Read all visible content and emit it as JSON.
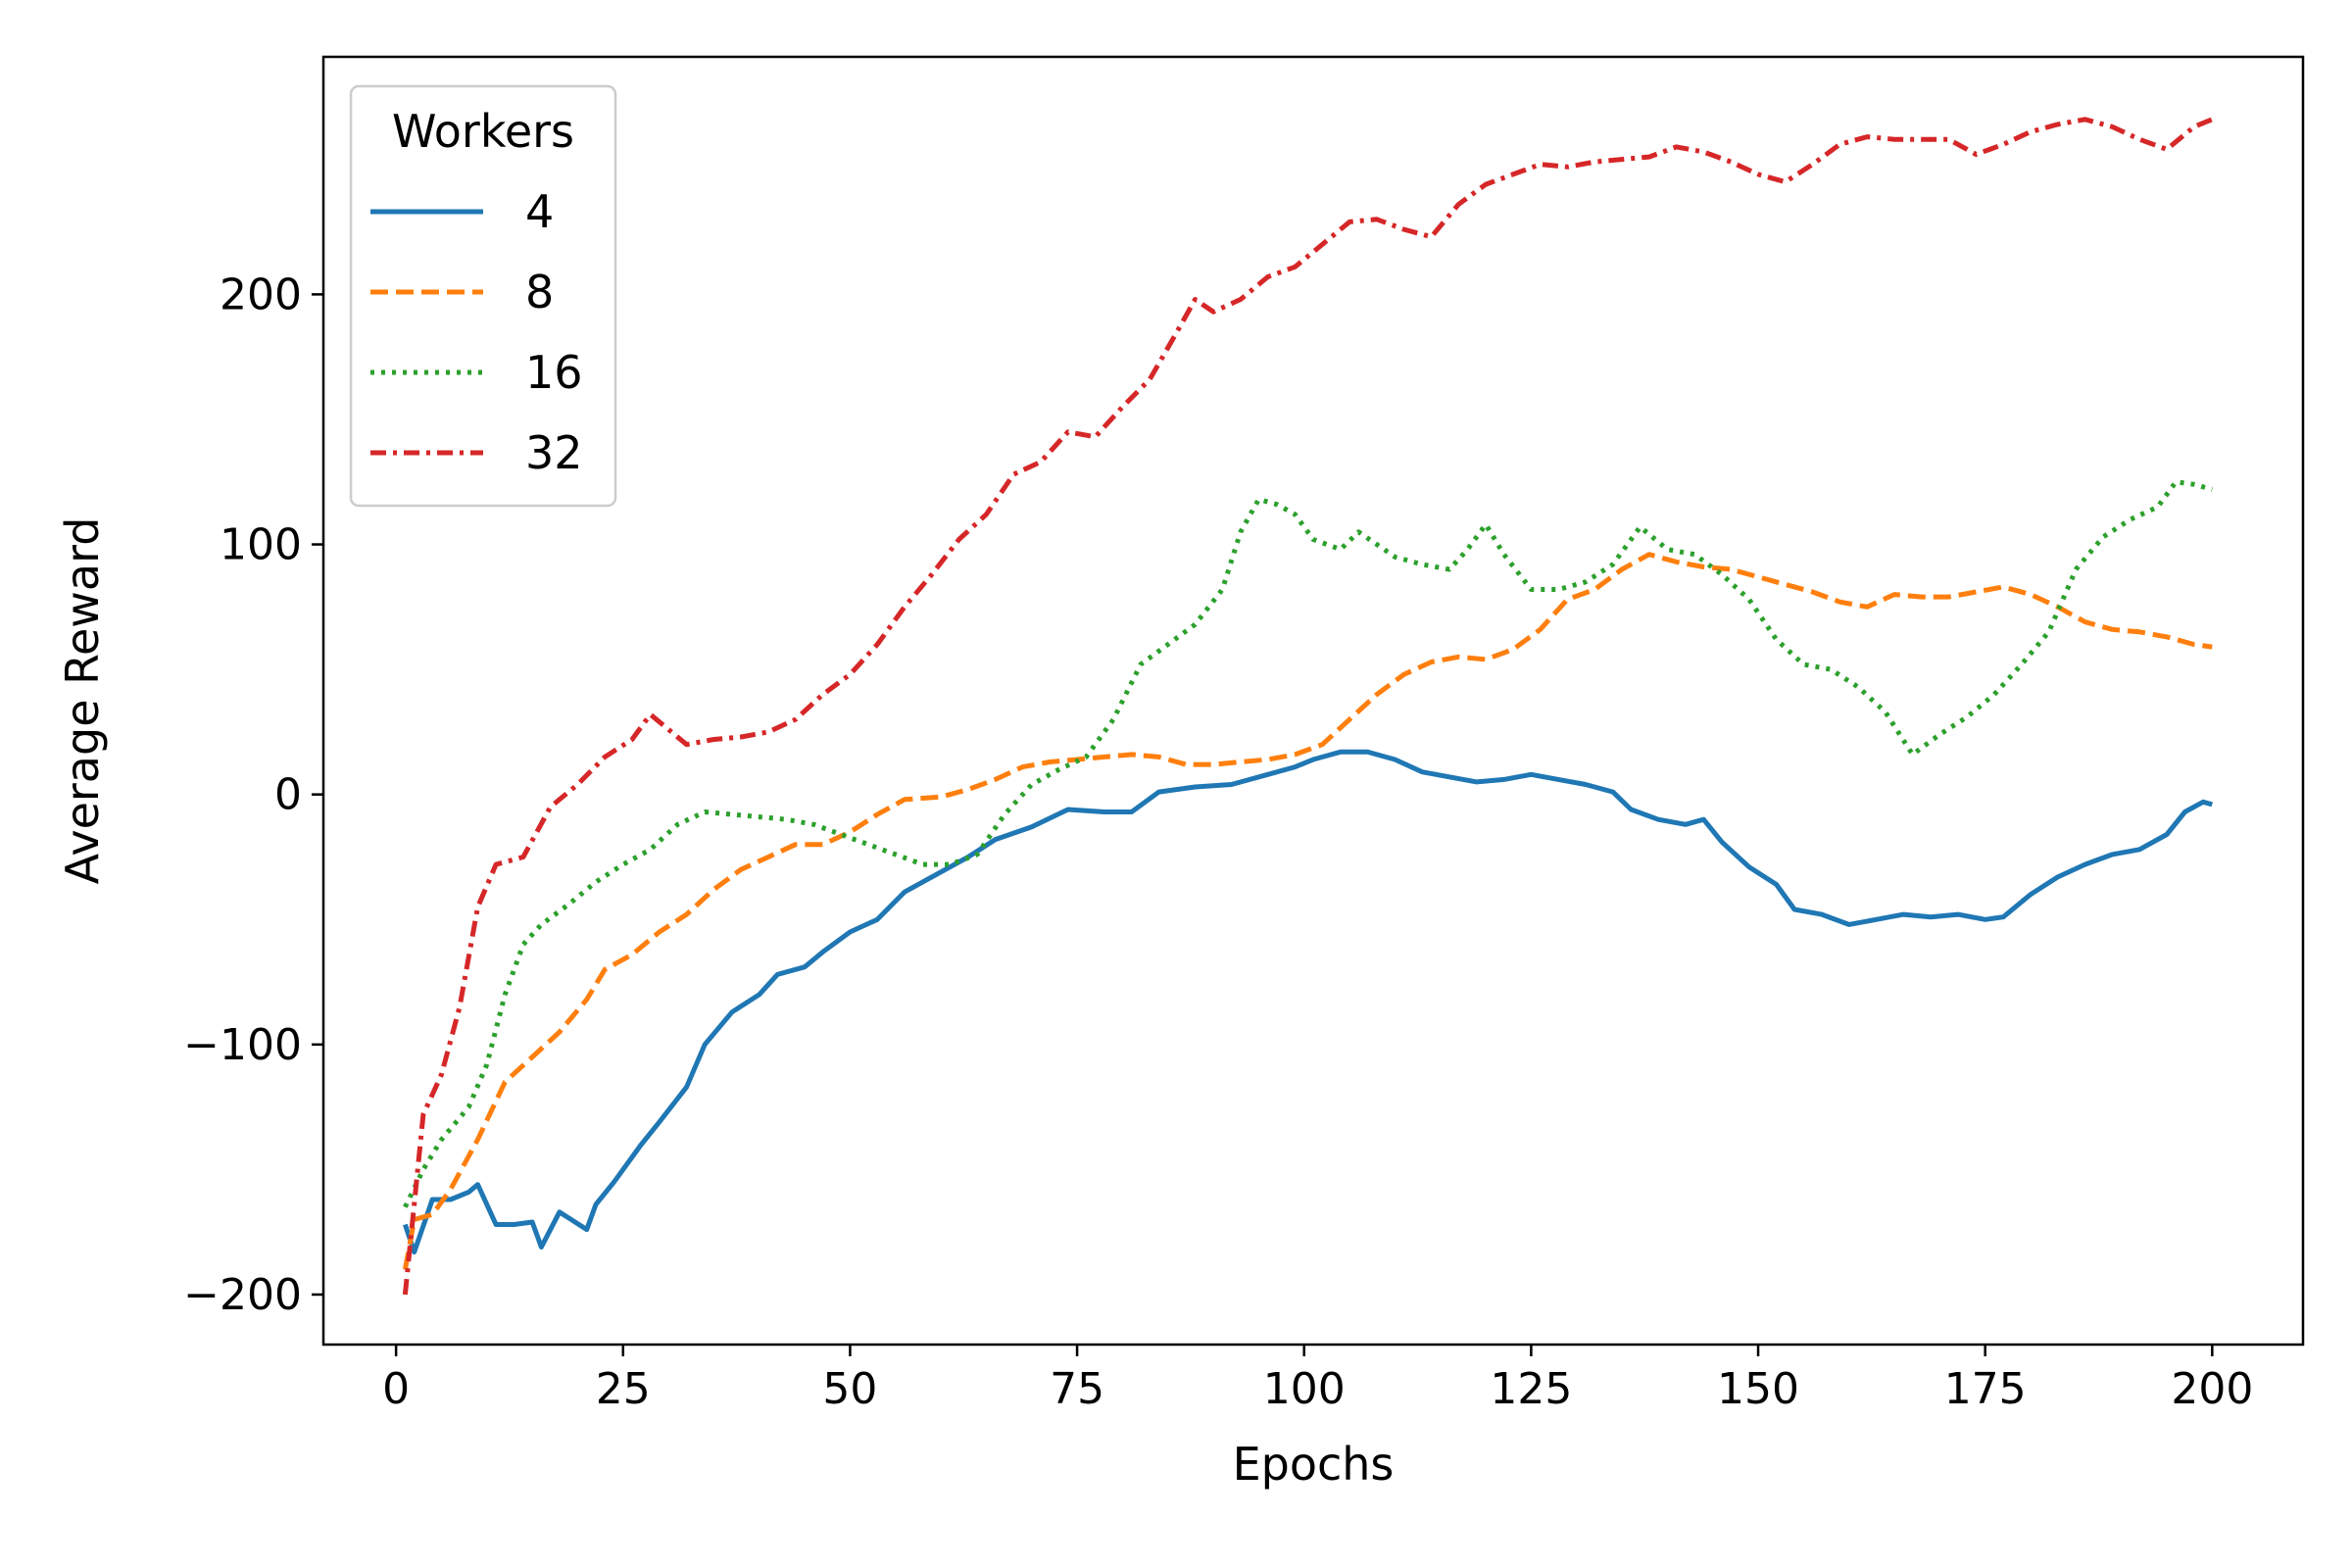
{
  "chart_data": {
    "type": "line",
    "xlabel": "Epochs",
    "ylabel": "Average Reward",
    "xlim": [
      -8,
      210
    ],
    "ylim": [
      -220,
      295
    ],
    "xticks": [
      0,
      25,
      50,
      75,
      100,
      125,
      150,
      175,
      200
    ],
    "yticks": [
      -200,
      -100,
      0,
      100,
      200
    ],
    "grid": false,
    "legend": {
      "title": "Workers",
      "placement": "top-left"
    },
    "series": [
      {
        "name": "4",
        "color": "#1f77b4",
        "dash": "solid",
        "points": [
          [
            1,
            -172
          ],
          [
            2,
            -183
          ],
          [
            4,
            -162
          ],
          [
            6,
            -162
          ],
          [
            8,
            -159
          ],
          [
            9,
            -156
          ],
          [
            11,
            -172
          ],
          [
            13,
            -172
          ],
          [
            15,
            -171
          ],
          [
            16,
            -181
          ],
          [
            18,
            -167
          ],
          [
            21,
            -174
          ],
          [
            22,
            -164
          ],
          [
            24,
            -155
          ],
          [
            27,
            -140
          ],
          [
            29,
            -131
          ],
          [
            32,
            -117
          ],
          [
            34,
            -100
          ],
          [
            37,
            -87
          ],
          [
            40,
            -80
          ],
          [
            42,
            -72
          ],
          [
            45,
            -69
          ],
          [
            47,
            -63
          ],
          [
            50,
            -55
          ],
          [
            53,
            -50
          ],
          [
            56,
            -39
          ],
          [
            60,
            -31
          ],
          [
            63,
            -25
          ],
          [
            66,
            -18
          ],
          [
            70,
            -13
          ],
          [
            74,
            -6
          ],
          [
            78,
            -7
          ],
          [
            81,
            -7
          ],
          [
            84,
            1
          ],
          [
            88,
            3
          ],
          [
            92,
            4
          ],
          [
            96,
            8
          ],
          [
            99,
            11
          ],
          [
            101,
            14
          ],
          [
            104,
            17
          ],
          [
            107,
            17
          ],
          [
            110,
            14
          ],
          [
            113,
            9
          ],
          [
            116,
            7
          ],
          [
            119,
            5
          ],
          [
            122,
            6
          ],
          [
            125,
            8
          ],
          [
            128,
            6
          ],
          [
            131,
            4
          ],
          [
            134,
            1
          ],
          [
            136,
            -6
          ],
          [
            139,
            -10
          ],
          [
            142,
            -12
          ],
          [
            144,
            -10
          ],
          [
            146,
            -19
          ],
          [
            149,
            -29
          ],
          [
            152,
            -36
          ],
          [
            154,
            -46
          ],
          [
            157,
            -48
          ],
          [
            160,
            -52
          ],
          [
            163,
            -50
          ],
          [
            166,
            -48
          ],
          [
            169,
            -49
          ],
          [
            172,
            -48
          ],
          [
            175,
            -50
          ],
          [
            177,
            -49
          ],
          [
            180,
            -40
          ],
          [
            183,
            -33
          ],
          [
            186,
            -28
          ],
          [
            189,
            -24
          ],
          [
            192,
            -22
          ],
          [
            195,
            -16
          ],
          [
            197,
            -7
          ],
          [
            199,
            -3
          ],
          [
            200,
            -4
          ]
        ]
      },
      {
        "name": "8",
        "color": "#ff7f0e",
        "dash": "dashed",
        "points": [
          [
            1,
            -190
          ],
          [
            2,
            -170
          ],
          [
            4,
            -168
          ],
          [
            6,
            -158
          ],
          [
            9,
            -138
          ],
          [
            12,
            -115
          ],
          [
            15,
            -105
          ],
          [
            18,
            -95
          ],
          [
            21,
            -82
          ],
          [
            23,
            -70
          ],
          [
            26,
            -64
          ],
          [
            29,
            -55
          ],
          [
            32,
            -48
          ],
          [
            35,
            -38
          ],
          [
            38,
            -30
          ],
          [
            41,
            -25
          ],
          [
            44,
            -20
          ],
          [
            47,
            -20
          ],
          [
            50,
            -15
          ],
          [
            53,
            -8
          ],
          [
            56,
            -2
          ],
          [
            60,
            -1
          ],
          [
            63,
            2
          ],
          [
            66,
            6
          ],
          [
            69,
            11
          ],
          [
            72,
            13
          ],
          [
            75,
            14
          ],
          [
            78,
            15
          ],
          [
            81,
            16
          ],
          [
            84,
            15
          ],
          [
            87,
            12
          ],
          [
            90,
            12
          ],
          [
            93,
            13
          ],
          [
            96,
            14
          ],
          [
            99,
            16
          ],
          [
            102,
            20
          ],
          [
            105,
            30
          ],
          [
            108,
            40
          ],
          [
            111,
            48
          ],
          [
            114,
            53
          ],
          [
            117,
            55
          ],
          [
            120,
            54
          ],
          [
            123,
            58
          ],
          [
            126,
            66
          ],
          [
            129,
            78
          ],
          [
            132,
            82
          ],
          [
            135,
            90
          ],
          [
            138,
            96
          ],
          [
            141,
            93
          ],
          [
            144,
            91
          ],
          [
            147,
            90
          ],
          [
            150,
            87
          ],
          [
            153,
            84
          ],
          [
            156,
            81
          ],
          [
            159,
            77
          ],
          [
            162,
            75
          ],
          [
            165,
            80
          ],
          [
            168,
            79
          ],
          [
            171,
            79
          ],
          [
            174,
            81
          ],
          [
            177,
            83
          ],
          [
            180,
            80
          ],
          [
            183,
            75
          ],
          [
            186,
            69
          ],
          [
            189,
            66
          ],
          [
            192,
            65
          ],
          [
            195,
            63
          ],
          [
            198,
            60
          ],
          [
            200,
            59
          ]
        ]
      },
      {
        "name": "16",
        "color": "#2ca02c",
        "dash": "dotted",
        "points": [
          [
            1,
            -165
          ],
          [
            3,
            -150
          ],
          [
            5,
            -138
          ],
          [
            8,
            -125
          ],
          [
            10,
            -108
          ],
          [
            12,
            -80
          ],
          [
            14,
            -60
          ],
          [
            16,
            -52
          ],
          [
            19,
            -44
          ],
          [
            22,
            -35
          ],
          [
            25,
            -28
          ],
          [
            28,
            -22
          ],
          [
            31,
            -12
          ],
          [
            34,
            -7
          ],
          [
            37,
            -8
          ],
          [
            40,
            -9
          ],
          [
            43,
            -10
          ],
          [
            46,
            -12
          ],
          [
            49,
            -16
          ],
          [
            52,
            -20
          ],
          [
            55,
            -24
          ],
          [
            58,
            -28
          ],
          [
            61,
            -28
          ],
          [
            64,
            -24
          ],
          [
            67,
            -8
          ],
          [
            70,
            4
          ],
          [
            73,
            10
          ],
          [
            76,
            15
          ],
          [
            79,
            30
          ],
          [
            82,
            52
          ],
          [
            85,
            60
          ],
          [
            88,
            68
          ],
          [
            91,
            82
          ],
          [
            93,
            105
          ],
          [
            95,
            118
          ],
          [
            97,
            116
          ],
          [
            99,
            112
          ],
          [
            101,
            102
          ],
          [
            104,
            98
          ],
          [
            106,
            105
          ],
          [
            108,
            100
          ],
          [
            110,
            95
          ],
          [
            113,
            92
          ],
          [
            116,
            90
          ],
          [
            118,
            98
          ],
          [
            120,
            108
          ],
          [
            122,
            96
          ],
          [
            125,
            82
          ],
          [
            128,
            82
          ],
          [
            131,
            85
          ],
          [
            134,
            92
          ],
          [
            137,
            107
          ],
          [
            140,
            98
          ],
          [
            143,
            96
          ],
          [
            146,
            88
          ],
          [
            149,
            78
          ],
          [
            152,
            62
          ],
          [
            155,
            52
          ],
          [
            158,
            50
          ],
          [
            161,
            43
          ],
          [
            164,
            33
          ],
          [
            167,
            16
          ],
          [
            170,
            24
          ],
          [
            173,
            31
          ],
          [
            176,
            40
          ],
          [
            179,
            52
          ],
          [
            182,
            65
          ],
          [
            185,
            90
          ],
          [
            188,
            103
          ],
          [
            191,
            110
          ],
          [
            194,
            115
          ],
          [
            196,
            125
          ],
          [
            198,
            124
          ],
          [
            200,
            122
          ]
        ]
      },
      {
        "name": "32",
        "color": "#d62728",
        "dash": "dashdot",
        "points": [
          [
            1,
            -200
          ],
          [
            3,
            -128
          ],
          [
            5,
            -112
          ],
          [
            7,
            -85
          ],
          [
            9,
            -45
          ],
          [
            11,
            -28
          ],
          [
            14,
            -25
          ],
          [
            17,
            -5
          ],
          [
            20,
            4
          ],
          [
            23,
            15
          ],
          [
            26,
            22
          ],
          [
            28,
            32
          ],
          [
            30,
            26
          ],
          [
            32,
            20
          ],
          [
            35,
            22
          ],
          [
            38,
            23
          ],
          [
            41,
            25
          ],
          [
            44,
            30
          ],
          [
            47,
            40
          ],
          [
            50,
            48
          ],
          [
            53,
            60
          ],
          [
            56,
            75
          ],
          [
            59,
            88
          ],
          [
            62,
            102
          ],
          [
            65,
            112
          ],
          [
            68,
            128
          ],
          [
            71,
            133
          ],
          [
            74,
            145
          ],
          [
            77,
            143
          ],
          [
            80,
            155
          ],
          [
            83,
            166
          ],
          [
            86,
            185
          ],
          [
            88,
            198
          ],
          [
            90,
            193
          ],
          [
            93,
            198
          ],
          [
            96,
            207
          ],
          [
            99,
            211
          ],
          [
            102,
            220
          ],
          [
            105,
            229
          ],
          [
            108,
            230
          ],
          [
            111,
            226
          ],
          [
            114,
            223
          ],
          [
            117,
            236
          ],
          [
            120,
            244
          ],
          [
            123,
            248
          ],
          [
            126,
            252
          ],
          [
            129,
            251
          ],
          [
            132,
            253
          ],
          [
            135,
            254
          ],
          [
            138,
            255
          ],
          [
            141,
            259
          ],
          [
            144,
            257
          ],
          [
            147,
            253
          ],
          [
            150,
            248
          ],
          [
            153,
            245
          ],
          [
            156,
            252
          ],
          [
            159,
            260
          ],
          [
            162,
            263
          ],
          [
            165,
            262
          ],
          [
            168,
            262
          ],
          [
            171,
            262
          ],
          [
            174,
            256
          ],
          [
            177,
            260
          ],
          [
            180,
            265
          ],
          [
            183,
            268
          ],
          [
            186,
            270
          ],
          [
            189,
            267
          ],
          [
            192,
            262
          ],
          [
            195,
            258
          ],
          [
            198,
            267
          ],
          [
            200,
            270
          ]
        ]
      }
    ]
  }
}
